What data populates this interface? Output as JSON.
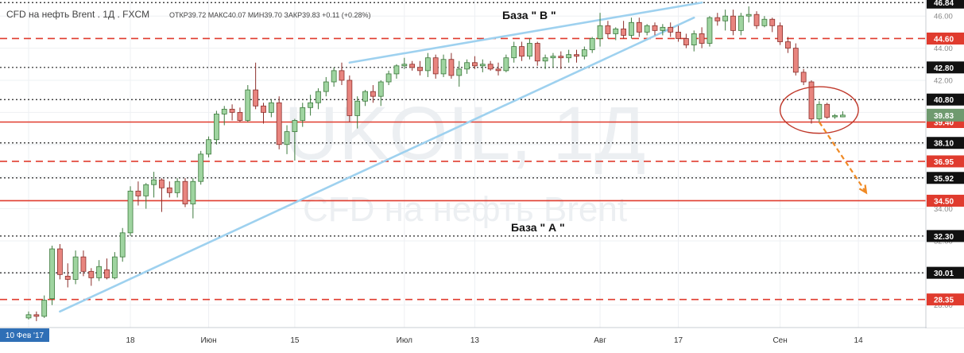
{
  "header": {
    "symbol_line": "CFD на нефть Brent . 1Д . FXCM",
    "ohlc_line": "ОТКР39.72  МАКС40.07  МИН39.70  ЗАКР39.83  +0.11  (+0.28%)"
  },
  "annotations": {
    "base_b": "База  \" В \"",
    "base_a": "База  \" А \""
  },
  "watermark": {
    "ticker": "UKOIL, 1Д",
    "name": "CFD на нефть Brent"
  },
  "colors": {
    "up": "#9fd4a0",
    "up_border": "#3d7a3d",
    "down": "#e8857f",
    "down_border": "#8c2f2b",
    "level_red": "#e03b2e",
    "trendline": "#9ed1ef",
    "arrow": "#f08a24",
    "last_price": "#6f9a6f"
  },
  "chart_data": {
    "type": "candlestick",
    "title": "CFD на нефть Brent . 1Д . FXCM",
    "timeframe": "1Д",
    "ylim": [
      26.6,
      47.0
    ],
    "y_ticks": [
      28.0,
      30.0,
      32.0,
      34.0,
      36.0,
      38.0,
      40.0,
      42.0,
      44.0,
      46.0
    ],
    "x_ticks": [
      "10 Фев '17",
      "18",
      "Июн",
      "15",
      "Июл",
      "13",
      "Авг",
      "17",
      "Сен",
      "14"
    ],
    "last_price": 39.83,
    "levels": [
      {
        "value": 46.84,
        "label": "46.84",
        "style": "dotted"
      },
      {
        "value": 44.6,
        "label": "44.60",
        "style": "dashed"
      },
      {
        "value": 42.8,
        "label": "42.80",
        "style": "dotted"
      },
      {
        "value": 40.8,
        "label": "40.80",
        "style": "dotted"
      },
      {
        "value": 39.4,
        "label": "39.40",
        "style": "solid"
      },
      {
        "value": 38.1,
        "label": "38.10",
        "style": "dotted"
      },
      {
        "value": 36.95,
        "label": "36.95",
        "style": "dashed"
      },
      {
        "value": 35.92,
        "label": "35.92",
        "style": "dotted"
      },
      {
        "value": 34.5,
        "label": "34.50",
        "style": "solid"
      },
      {
        "value": 32.3,
        "label": "32.30",
        "style": "dotted"
      },
      {
        "value": 30.01,
        "label": "30.01",
        "style": "dotted"
      },
      {
        "value": 28.35,
        "label": "28.35",
        "style": "dashed"
      }
    ],
    "candles": [
      [
        27.2,
        27.6,
        27.1,
        27.4
      ],
      [
        27.4,
        27.6,
        27.0,
        27.3
      ],
      [
        27.3,
        28.6,
        27.2,
        28.3
      ],
      [
        28.4,
        31.7,
        28.0,
        31.5
      ],
      [
        31.5,
        31.8,
        29.6,
        29.9
      ],
      [
        29.8,
        30.6,
        29.1,
        29.6
      ],
      [
        29.6,
        31.4,
        29.3,
        31.0
      ],
      [
        31.0,
        31.4,
        29.8,
        30.1
      ],
      [
        30.1,
        30.3,
        29.2,
        29.7
      ],
      [
        29.7,
        30.8,
        29.5,
        30.4
      ],
      [
        30.2,
        30.9,
        29.6,
        29.7
      ],
      [
        29.7,
        31.3,
        29.6,
        31.0
      ],
      [
        31.0,
        32.8,
        30.7,
        32.5
      ],
      [
        32.5,
        35.4,
        32.3,
        35.1
      ],
      [
        35.1,
        35.7,
        34.2,
        34.8
      ],
      [
        34.8,
        35.6,
        34.0,
        35.5
      ],
      [
        35.5,
        36.3,
        34.7,
        35.8
      ],
      [
        35.8,
        35.9,
        33.8,
        35.3
      ],
      [
        35.3,
        35.7,
        34.7,
        35.0
      ],
      [
        35.0,
        35.9,
        34.7,
        35.7
      ],
      [
        35.7,
        35.9,
        34.1,
        34.3
      ],
      [
        34.3,
        35.9,
        33.4,
        35.7
      ],
      [
        35.7,
        37.6,
        35.5,
        37.4
      ],
      [
        37.4,
        38.5,
        37.2,
        38.3
      ],
      [
        38.3,
        40.1,
        38.0,
        39.9
      ],
      [
        39.9,
        40.4,
        39.2,
        40.2
      ],
      [
        40.2,
        40.5,
        39.5,
        40.0
      ],
      [
        40.0,
        40.3,
        39.4,
        39.5
      ],
      [
        39.5,
        41.7,
        39.4,
        41.4
      ],
      [
        41.4,
        43.1,
        40.2,
        40.4
      ],
      [
        40.4,
        40.6,
        39.3,
        40.0
      ],
      [
        40.0,
        40.8,
        39.7,
        40.6
      ],
      [
        40.6,
        41.0,
        37.7,
        38.0
      ],
      [
        38.0,
        39.2,
        37.4,
        38.8
      ],
      [
        38.8,
        39.6,
        37.0,
        39.5
      ],
      [
        39.5,
        40.6,
        39.1,
        40.3
      ],
      [
        40.3,
        41.1,
        39.8,
        40.6
      ],
      [
        40.6,
        41.5,
        40.2,
        41.3
      ],
      [
        41.3,
        42.2,
        41.0,
        41.9
      ],
      [
        41.9,
        42.8,
        41.6,
        42.6
      ],
      [
        42.6,
        43.1,
        41.7,
        42.0
      ],
      [
        42.0,
        42.3,
        39.4,
        39.8
      ],
      [
        39.8,
        41.0,
        39.0,
        40.7
      ],
      [
        40.7,
        41.4,
        40.4,
        41.3
      ],
      [
        41.3,
        41.7,
        40.6,
        41.0
      ],
      [
        41.0,
        42.0,
        40.4,
        41.9
      ],
      [
        41.9,
        42.6,
        41.7,
        42.4
      ],
      [
        42.4,
        43.0,
        42.1,
        42.9
      ],
      [
        42.9,
        43.4,
        42.7,
        43.0
      ],
      [
        43.0,
        43.2,
        42.6,
        42.8
      ],
      [
        42.8,
        43.2,
        42.3,
        42.6
      ],
      [
        42.6,
        43.7,
        42.2,
        43.4
      ],
      [
        43.4,
        43.6,
        42.1,
        42.4
      ],
      [
        42.4,
        43.6,
        42.2,
        43.3
      ],
      [
        43.3,
        43.7,
        42.1,
        42.3
      ],
      [
        42.3,
        43.2,
        41.6,
        42.7
      ],
      [
        42.7,
        43.3,
        42.4,
        43.1
      ],
      [
        43.1,
        43.5,
        42.7,
        42.9
      ],
      [
        42.9,
        43.3,
        42.5,
        43.0
      ],
      [
        43.0,
        43.2,
        42.6,
        42.7
      ],
      [
        42.7,
        43.1,
        42.3,
        42.6
      ],
      [
        42.6,
        43.6,
        42.5,
        43.4
      ],
      [
        43.4,
        44.4,
        43.1,
        44.1
      ],
      [
        44.1,
        44.4,
        43.2,
        43.5
      ],
      [
        43.5,
        44.6,
        43.3,
        44.3
      ],
      [
        44.3,
        44.4,
        42.9,
        43.2
      ],
      [
        43.2,
        43.6,
        42.7,
        43.4
      ],
      [
        43.4,
        43.7,
        42.8,
        43.5
      ],
      [
        43.5,
        43.8,
        42.7,
        43.4
      ],
      [
        43.4,
        43.9,
        43.1,
        43.6
      ],
      [
        43.6,
        43.9,
        43.1,
        43.5
      ],
      [
        43.5,
        44.1,
        43.3,
        43.9
      ],
      [
        43.9,
        44.7,
        43.7,
        44.6
      ],
      [
        44.6,
        46.2,
        44.1,
        45.4
      ],
      [
        45.4,
        45.7,
        44.6,
        44.9
      ],
      [
        44.9,
        45.3,
        44.5,
        45.2
      ],
      [
        45.2,
        45.7,
        44.6,
        44.8
      ],
      [
        44.8,
        45.9,
        44.6,
        45.6
      ],
      [
        45.6,
        45.9,
        44.7,
        45.0
      ],
      [
        45.0,
        45.5,
        44.8,
        45.4
      ],
      [
        45.4,
        45.6,
        44.8,
        45.1
      ],
      [
        45.1,
        45.5,
        44.8,
        45.3
      ],
      [
        45.3,
        45.6,
        44.7,
        45.0
      ],
      [
        45.0,
        45.4,
        44.4,
        44.6
      ],
      [
        44.6,
        44.9,
        44.0,
        44.2
      ],
      [
        44.2,
        45.1,
        43.8,
        44.9
      ],
      [
        44.9,
        45.3,
        44.0,
        44.3
      ],
      [
        44.3,
        46.0,
        44.1,
        45.9
      ],
      [
        45.9,
        46.2,
        45.4,
        45.7
      ],
      [
        45.7,
        46.4,
        45.1,
        46.0
      ],
      [
        46.0,
        46.4,
        44.8,
        45.1
      ],
      [
        45.1,
        46.2,
        44.8,
        46.0
      ],
      [
        46.0,
        46.6,
        45.6,
        46.1
      ],
      [
        46.1,
        46.3,
        45.2,
        45.4
      ],
      [
        45.4,
        46.0,
        45.3,
        45.8
      ],
      [
        45.8,
        45.9,
        45.0,
        45.4
      ],
      [
        45.4,
        45.6,
        44.2,
        44.4
      ],
      [
        44.4,
        44.7,
        43.7,
        44.0
      ],
      [
        44.0,
        44.3,
        42.3,
        42.5
      ],
      [
        42.5,
        42.7,
        41.7,
        41.9
      ],
      [
        41.9,
        42.0,
        39.3,
        39.6
      ],
      [
        39.6,
        40.7,
        39.4,
        40.5
      ],
      [
        40.5,
        40.6,
        39.6,
        39.7
      ],
      [
        39.72,
        39.9,
        39.6,
        39.8
      ],
      [
        39.72,
        40.07,
        39.7,
        39.83
      ]
    ],
    "trendlines": [
      {
        "name": "upper",
        "from": [
          41,
          43.1
        ],
        "to": [
          86,
          46.84
        ]
      },
      {
        "name": "lower",
        "from": [
          4,
          27.6
        ],
        "to": [
          85,
          45.9
        ]
      }
    ],
    "forecast_arrow": {
      "from": [
        101,
        39.4
      ],
      "to": [
        107,
        35.0
      ]
    },
    "highlight_ellipse": {
      "center": [
        101,
        40.15
      ],
      "rx_bars": 5,
      "ry": 1.45
    }
  }
}
